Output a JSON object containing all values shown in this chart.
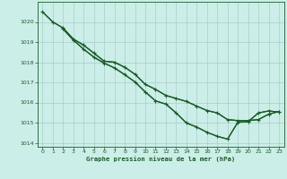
{
  "title": "Graphe pression niveau de la mer (hPa)",
  "background_color": "#cceee8",
  "grid_color": "#aacccc",
  "line_color": "#1a5c28",
  "xlim": [
    -0.5,
    23.5
  ],
  "ylim": [
    1013.8,
    1021.0
  ],
  "yticks": [
    1014,
    1015,
    1016,
    1017,
    1018,
    1019,
    1020
  ],
  "xticks": [
    0,
    1,
    2,
    3,
    4,
    5,
    6,
    7,
    8,
    9,
    10,
    11,
    12,
    13,
    14,
    15,
    16,
    17,
    18,
    19,
    20,
    21,
    22,
    23
  ],
  "line1_x": [
    0,
    1,
    2,
    3,
    4,
    5,
    6,
    7,
    8,
    9,
    10,
    11,
    12,
    13,
    14,
    15,
    16,
    17,
    18,
    19,
    20,
    21,
    22,
    23
  ],
  "line1_y": [
    1020.5,
    1020.0,
    1019.7,
    1019.15,
    1018.85,
    1018.45,
    1018.05,
    1018.0,
    1017.75,
    1017.4,
    1016.9,
    1016.65,
    1016.35,
    1016.2,
    1016.05,
    1015.82,
    1015.6,
    1015.48,
    1015.15,
    1015.1,
    1015.1,
    1015.15,
    1015.42,
    1015.55
  ],
  "line2_x": [
    0,
    1,
    2,
    3,
    4,
    5,
    6,
    7,
    8,
    9,
    10,
    11,
    12,
    13,
    14,
    15,
    16,
    17,
    18,
    19,
    20,
    21,
    22,
    23
  ],
  "line2_y": [
    1020.5,
    1020.0,
    1019.7,
    1019.15,
    1018.85,
    1018.45,
    1018.05,
    1018.0,
    1017.75,
    1017.4,
    1016.9,
    1016.65,
    1016.35,
    1016.2,
    1016.05,
    1015.82,
    1015.6,
    1015.48,
    1015.15,
    1015.1,
    1015.1,
    1015.15,
    1015.42,
    1015.55
  ],
  "line3_x": [
    2,
    3,
    4,
    5,
    6,
    7,
    8,
    9,
    10,
    11,
    12,
    13,
    14,
    15,
    16,
    17,
    18,
    19,
    20,
    21,
    22,
    23
  ],
  "line3_y": [
    1019.65,
    1019.1,
    1018.65,
    1018.25,
    1017.95,
    1017.72,
    1017.38,
    1017.02,
    1016.52,
    1016.08,
    1015.92,
    1015.48,
    1014.98,
    1014.78,
    1014.52,
    1014.32,
    1014.18,
    1015.02,
    1015.05,
    1015.48,
    1015.58,
    1015.52
  ],
  "line4_x": [
    2,
    3,
    4,
    5,
    6,
    7,
    8,
    9,
    10,
    11,
    12,
    13,
    14,
    15,
    16,
    17,
    18,
    19,
    20,
    21,
    22,
    23
  ],
  "line4_y": [
    1019.65,
    1019.1,
    1018.65,
    1018.25,
    1017.95,
    1017.72,
    1017.38,
    1017.02,
    1016.52,
    1016.08,
    1015.92,
    1015.48,
    1014.98,
    1014.78,
    1014.52,
    1014.32,
    1014.18,
    1015.02,
    1015.05,
    1015.48,
    1015.58,
    1015.52
  ]
}
